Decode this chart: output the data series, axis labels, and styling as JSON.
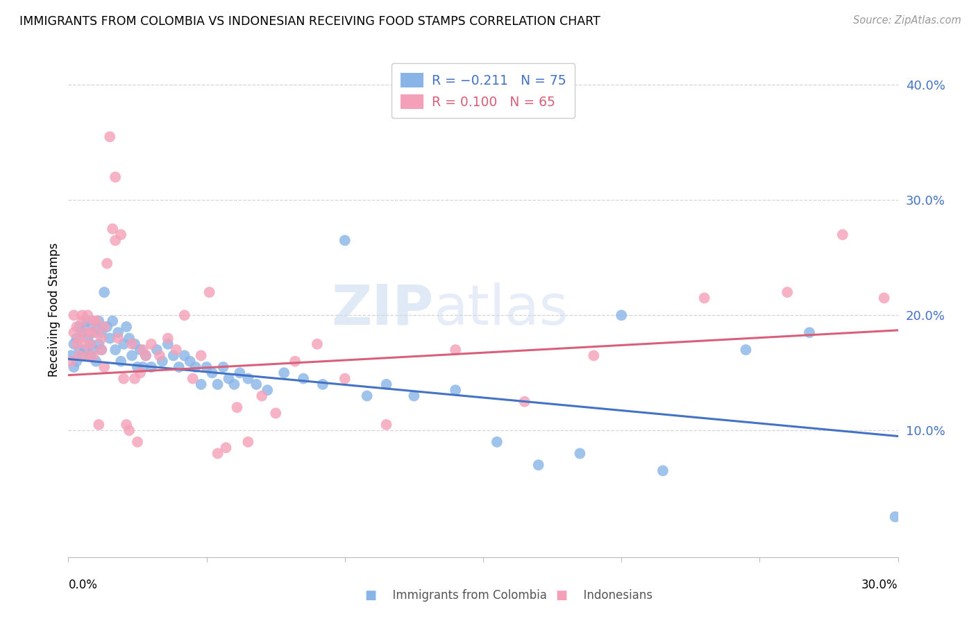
{
  "title": "IMMIGRANTS FROM COLOMBIA VS INDONESIAN RECEIVING FOOD STAMPS CORRELATION CHART",
  "source": "Source: ZipAtlas.com",
  "ylabel": "Receiving Food Stamps",
  "xlim": [
    0.0,
    0.3
  ],
  "ylim": [
    -0.01,
    0.42
  ],
  "colombia_color": "#89b4e8",
  "indonesia_color": "#f4a0b8",
  "colombia_line_color": "#4472c4",
  "indonesia_line_color": "#d9607a",
  "watermark_zip": "ZIP",
  "watermark_atlas": "atlas",
  "colombia_R": -0.211,
  "colombia_N": 75,
  "indonesia_R": 0.1,
  "indonesia_N": 65,
  "colombia_trend": [
    0.162,
    0.095
  ],
  "indonesia_trend": [
    0.148,
    0.187
  ],
  "colombia_points": [
    [
      0.001,
      0.165
    ],
    [
      0.002,
      0.175
    ],
    [
      0.002,
      0.155
    ],
    [
      0.003,
      0.18
    ],
    [
      0.003,
      0.16
    ],
    [
      0.004,
      0.19
    ],
    [
      0.004,
      0.17
    ],
    [
      0.005,
      0.185
    ],
    [
      0.005,
      0.165
    ],
    [
      0.006,
      0.19
    ],
    [
      0.006,
      0.17
    ],
    [
      0.007,
      0.18
    ],
    [
      0.007,
      0.195
    ],
    [
      0.008,
      0.175
    ],
    [
      0.008,
      0.165
    ],
    [
      0.009,
      0.185
    ],
    [
      0.009,
      0.17
    ],
    [
      0.01,
      0.19
    ],
    [
      0.01,
      0.16
    ],
    [
      0.011,
      0.195
    ],
    [
      0.011,
      0.175
    ],
    [
      0.012,
      0.185
    ],
    [
      0.012,
      0.17
    ],
    [
      0.013,
      0.22
    ],
    [
      0.014,
      0.19
    ],
    [
      0.015,
      0.18
    ],
    [
      0.016,
      0.195
    ],
    [
      0.017,
      0.17
    ],
    [
      0.018,
      0.185
    ],
    [
      0.019,
      0.16
    ],
    [
      0.02,
      0.175
    ],
    [
      0.021,
      0.19
    ],
    [
      0.022,
      0.18
    ],
    [
      0.023,
      0.165
    ],
    [
      0.024,
      0.175
    ],
    [
      0.025,
      0.155
    ],
    [
      0.026,
      0.17
    ],
    [
      0.027,
      0.155
    ],
    [
      0.028,
      0.165
    ],
    [
      0.03,
      0.155
    ],
    [
      0.032,
      0.17
    ],
    [
      0.034,
      0.16
    ],
    [
      0.036,
      0.175
    ],
    [
      0.038,
      0.165
    ],
    [
      0.04,
      0.155
    ],
    [
      0.042,
      0.165
    ],
    [
      0.044,
      0.16
    ],
    [
      0.046,
      0.155
    ],
    [
      0.048,
      0.14
    ],
    [
      0.05,
      0.155
    ],
    [
      0.052,
      0.15
    ],
    [
      0.054,
      0.14
    ],
    [
      0.056,
      0.155
    ],
    [
      0.058,
      0.145
    ],
    [
      0.06,
      0.14
    ],
    [
      0.062,
      0.15
    ],
    [
      0.065,
      0.145
    ],
    [
      0.068,
      0.14
    ],
    [
      0.072,
      0.135
    ],
    [
      0.078,
      0.15
    ],
    [
      0.085,
      0.145
    ],
    [
      0.092,
      0.14
    ],
    [
      0.1,
      0.265
    ],
    [
      0.108,
      0.13
    ],
    [
      0.115,
      0.14
    ],
    [
      0.125,
      0.13
    ],
    [
      0.14,
      0.135
    ],
    [
      0.155,
      0.09
    ],
    [
      0.17,
      0.07
    ],
    [
      0.185,
      0.08
    ],
    [
      0.2,
      0.2
    ],
    [
      0.215,
      0.065
    ],
    [
      0.245,
      0.17
    ],
    [
      0.268,
      0.185
    ],
    [
      0.299,
      0.025
    ]
  ],
  "indonesia_points": [
    [
      0.001,
      0.16
    ],
    [
      0.002,
      0.185
    ],
    [
      0.002,
      0.2
    ],
    [
      0.003,
      0.175
    ],
    [
      0.003,
      0.19
    ],
    [
      0.004,
      0.165
    ],
    [
      0.004,
      0.18
    ],
    [
      0.005,
      0.2
    ],
    [
      0.005,
      0.195
    ],
    [
      0.006,
      0.175
    ],
    [
      0.006,
      0.185
    ],
    [
      0.007,
      0.165
    ],
    [
      0.007,
      0.2
    ],
    [
      0.008,
      0.185
    ],
    [
      0.008,
      0.175
    ],
    [
      0.009,
      0.195
    ],
    [
      0.009,
      0.165
    ],
    [
      0.01,
      0.185
    ],
    [
      0.01,
      0.195
    ],
    [
      0.011,
      0.105
    ],
    [
      0.012,
      0.18
    ],
    [
      0.012,
      0.17
    ],
    [
      0.013,
      0.19
    ],
    [
      0.013,
      0.155
    ],
    [
      0.014,
      0.245
    ],
    [
      0.015,
      0.355
    ],
    [
      0.016,
      0.275
    ],
    [
      0.017,
      0.32
    ],
    [
      0.017,
      0.265
    ],
    [
      0.018,
      0.18
    ],
    [
      0.019,
      0.27
    ],
    [
      0.02,
      0.145
    ],
    [
      0.021,
      0.105
    ],
    [
      0.022,
      0.1
    ],
    [
      0.023,
      0.175
    ],
    [
      0.024,
      0.145
    ],
    [
      0.025,
      0.09
    ],
    [
      0.026,
      0.15
    ],
    [
      0.027,
      0.17
    ],
    [
      0.028,
      0.165
    ],
    [
      0.03,
      0.175
    ],
    [
      0.033,
      0.165
    ],
    [
      0.036,
      0.18
    ],
    [
      0.039,
      0.17
    ],
    [
      0.042,
      0.2
    ],
    [
      0.045,
      0.145
    ],
    [
      0.048,
      0.165
    ],
    [
      0.051,
      0.22
    ],
    [
      0.054,
      0.08
    ],
    [
      0.057,
      0.085
    ],
    [
      0.061,
      0.12
    ],
    [
      0.065,
      0.09
    ],
    [
      0.07,
      0.13
    ],
    [
      0.075,
      0.115
    ],
    [
      0.082,
      0.16
    ],
    [
      0.09,
      0.175
    ],
    [
      0.1,
      0.145
    ],
    [
      0.115,
      0.105
    ],
    [
      0.14,
      0.17
    ],
    [
      0.165,
      0.125
    ],
    [
      0.19,
      0.165
    ],
    [
      0.23,
      0.215
    ],
    [
      0.26,
      0.22
    ],
    [
      0.28,
      0.27
    ],
    [
      0.295,
      0.215
    ]
  ]
}
